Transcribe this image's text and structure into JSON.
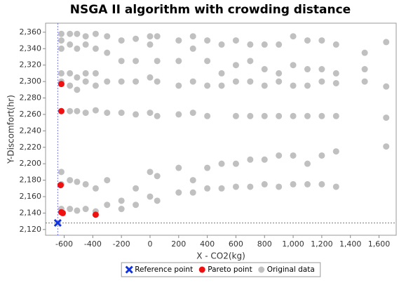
{
  "chart_data": {
    "type": "scatter",
    "title": "NSGA II algorithm with crowding distance",
    "x_label": "X - CO2(kg)",
    "y_label": "Y-Discomfort(hr)",
    "xlim": [
      -730,
      1720
    ],
    "ylim": [
      2113,
      2371
    ],
    "xticks": [
      -600,
      -400,
      -200,
      0,
      200,
      400,
      600,
      800,
      {
        "value": 1000,
        "label": "1,000"
      },
      {
        "value": 1200,
        "label": "1,200"
      },
      {
        "value": 1400,
        "label": "1,400"
      },
      {
        "value": 1600,
        "label": "1,600"
      }
    ],
    "yticks": [
      {
        "value": 2120,
        "label": "2,120"
      },
      {
        "value": 2140,
        "label": "2,140"
      },
      {
        "value": 2160,
        "label": "2,160"
      },
      {
        "value": 2180,
        "label": "2,180"
      },
      {
        "value": 2200,
        "label": "2,200"
      },
      {
        "value": 2220,
        "label": "2,220"
      },
      {
        "value": 2240,
        "label": "2,240"
      },
      {
        "value": 2260,
        "label": "2,260"
      },
      {
        "value": 2280,
        "label": "2,280"
      },
      {
        "value": 2300,
        "label": "2,300"
      },
      {
        "value": 2320,
        "label": "2,320"
      },
      {
        "value": 2340,
        "label": "2,340"
      },
      {
        "value": 2360,
        "label": "2,360"
      }
    ],
    "legend": "bottom",
    "series": [
      {
        "name": "Reference point",
        "color": "#1133dd",
        "marker": "x",
        "x": [
          -645
        ],
        "y": [
          2128
        ]
      },
      {
        "name": "Pareto point",
        "color": "#ee1111",
        "marker": "circle",
        "x": [
          -620,
          -620,
          -625,
          -620,
          -610,
          -380
        ],
        "y": [
          2297,
          2264,
          2174,
          2141,
          2140,
          2138
        ]
      },
      {
        "name": "Original data",
        "color": "#c0c0c0",
        "marker": "circle",
        "x": [
          -620,
          -620,
          -620,
          -620,
          -620,
          -620,
          -620,
          -620,
          -620,
          -560,
          -560,
          -560,
          -560,
          -560,
          -560,
          -560,
          -510,
          -510,
          -510,
          -510,
          -510,
          -510,
          -510,
          -450,
          -450,
          -450,
          -450,
          -450,
          -450,
          -450,
          -380,
          -380,
          -380,
          -380,
          -380,
          -380,
          -380,
          -300,
          -300,
          -300,
          -300,
          -300,
          -300,
          -200,
          -200,
          -200,
          -200,
          -200,
          -200,
          -100,
          -100,
          -100,
          -100,
          -100,
          -100,
          0,
          0,
          0,
          0,
          0,
          0,
          50,
          50,
          50,
          50,
          50,
          50,
          200,
          200,
          200,
          200,
          200,
          200,
          300,
          300,
          300,
          300,
          300,
          300,
          400,
          400,
          400,
          400,
          400,
          400,
          500,
          500,
          500,
          500,
          500,
          600,
          600,
          600,
          600,
          600,
          600,
          700,
          700,
          700,
          700,
          700,
          700,
          800,
          800,
          800,
          800,
          800,
          800,
          900,
          900,
          900,
          900,
          900,
          900,
          1000,
          1000,
          1000,
          1000,
          1000,
          1000,
          1100,
          1100,
          1100,
          1100,
          1100,
          1100,
          1200,
          1200,
          1200,
          1200,
          1200,
          1200,
          1300,
          1300,
          1300,
          1300,
          1300,
          1300,
          1500,
          1500,
          1500,
          1650,
          1650,
          1650,
          1650
        ],
        "y": [
          2358,
          2350,
          2340,
          2310,
          2300,
          2264,
          2190,
          2175,
          2145,
          2358,
          2345,
          2310,
          2295,
          2264,
          2180,
          2145,
          2358,
          2340,
          2305,
          2290,
          2264,
          2178,
          2143,
          2355,
          2345,
          2310,
          2300,
          2262,
          2175,
          2145,
          2358,
          2340,
          2310,
          2295,
          2265,
          2170,
          2142,
          2355,
          2335,
          2300,
          2262,
          2180,
          2150,
          2350,
          2325,
          2300,
          2262,
          2155,
          2145,
          2352,
          2325,
          2300,
          2260,
          2170,
          2150,
          2355,
          2345,
          2305,
          2262,
          2190,
          2160,
          2355,
          2325,
          2300,
          2258,
          2185,
          2155,
          2350,
          2325,
          2295,
          2260,
          2195,
          2165,
          2355,
          2340,
          2300,
          2262,
          2180,
          2165,
          2350,
          2325,
          2295,
          2258,
          2195,
          2170,
          2345,
          2310,
          2295,
          2200,
          2170,
          2350,
          2320,
          2300,
          2258,
          2200,
          2172,
          2345,
          2325,
          2300,
          2258,
          2205,
          2172,
          2345,
          2315,
          2295,
          2258,
          2205,
          2175,
          2345,
          2310,
          2300,
          2258,
          2210,
          2172,
          2355,
          2320,
          2295,
          2258,
          2210,
          2175,
          2350,
          2315,
          2295,
          2258,
          2200,
          2175,
          2350,
          2315,
          2300,
          2258,
          2210,
          2175,
          2345,
          2310,
          2298,
          2258,
          2215,
          2172,
          2335,
          2315,
          2300,
          2348,
          2294,
          2256,
          2221
        ]
      }
    ]
  }
}
